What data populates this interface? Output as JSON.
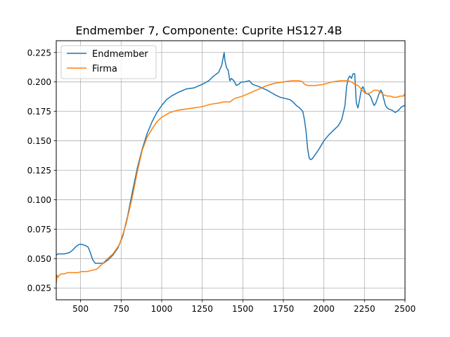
{
  "chart_data": {
    "type": "line",
    "title": "Endmember 7, Componente: Cuprite HS127.4B",
    "xlabel": "",
    "ylabel": "",
    "xlim": [
      350,
      2500
    ],
    "ylim": [
      0.015,
      0.235
    ],
    "xticks": [
      500,
      750,
      1000,
      1250,
      1500,
      1750,
      2000,
      2250,
      2500
    ],
    "yticks": [
      0.025,
      0.05,
      0.075,
      0.1,
      0.125,
      0.15,
      0.175,
      0.2,
      0.225
    ],
    "xtick_labels": [
      "500",
      "750",
      "1000",
      "1250",
      "1500",
      "1750",
      "2000",
      "2250",
      "2500"
    ],
    "ytick_labels": [
      "0.025",
      "0.050",
      "0.075",
      "0.100",
      "0.125",
      "0.150",
      "0.175",
      "0.200",
      "0.225"
    ],
    "grid": true,
    "legend_position": "top-left",
    "series": [
      {
        "name": "Endmember",
        "color": "#1f77b4",
        "x": [
          350,
          360,
          400,
          430,
          450,
          470,
          490,
          510,
          530,
          545,
          555,
          565,
          575,
          590,
          610,
          640,
          670,
          700,
          730,
          760,
          790,
          820,
          850,
          880,
          910,
          940,
          970,
          1000,
          1030,
          1060,
          1100,
          1150,
          1200,
          1250,
          1290,
          1320,
          1350,
          1370,
          1385,
          1390,
          1400,
          1410,
          1420,
          1425,
          1430,
          1445,
          1460,
          1475,
          1490,
          1510,
          1540,
          1560,
          1600,
          1650,
          1700,
          1730,
          1760,
          1790,
          1810,
          1830,
          1850,
          1870,
          1880,
          1890,
          1900,
          1910,
          1920,
          1930,
          1950,
          1970,
          2000,
          2030,
          2060,
          2090,
          2110,
          2130,
          2140,
          2150,
          2160,
          2170,
          2180,
          2190,
          2200,
          2210,
          2220,
          2230,
          2240,
          2250,
          2260,
          2270,
          2280,
          2290,
          2300,
          2310,
          2320,
          2330,
          2340,
          2350,
          2360,
          2370,
          2380,
          2390,
          2400,
          2420,
          2440,
          2460,
          2480,
          2500
        ],
        "y": [
          0.053,
          0.054,
          0.054,
          0.055,
          0.057,
          0.06,
          0.062,
          0.062,
          0.061,
          0.06,
          0.057,
          0.053,
          0.049,
          0.046,
          0.046,
          0.046,
          0.049,
          0.053,
          0.059,
          0.069,
          0.086,
          0.107,
          0.127,
          0.143,
          0.156,
          0.166,
          0.174,
          0.18,
          0.185,
          0.188,
          0.191,
          0.194,
          0.195,
          0.198,
          0.201,
          0.205,
          0.208,
          0.214,
          0.225,
          0.218,
          0.212,
          0.21,
          0.201,
          0.202,
          0.203,
          0.201,
          0.197,
          0.198,
          0.2,
          0.2,
          0.201,
          0.198,
          0.196,
          0.193,
          0.189,
          0.187,
          0.186,
          0.185,
          0.183,
          0.18,
          0.178,
          0.175,
          0.168,
          0.158,
          0.143,
          0.135,
          0.134,
          0.135,
          0.139,
          0.143,
          0.15,
          0.155,
          0.159,
          0.163,
          0.168,
          0.18,
          0.196,
          0.203,
          0.205,
          0.203,
          0.207,
          0.207,
          0.182,
          0.178,
          0.185,
          0.193,
          0.196,
          0.193,
          0.19,
          0.19,
          0.189,
          0.187,
          0.183,
          0.18,
          0.182,
          0.186,
          0.19,
          0.193,
          0.191,
          0.185,
          0.18,
          0.178,
          0.177,
          0.176,
          0.174,
          0.176,
          0.179,
          0.18
        ]
      },
      {
        "name": "Firma",
        "color": "#ff7f0e",
        "x": [
          350,
          355,
          360,
          370,
          380,
          400,
          420,
          450,
          480,
          510,
          540,
          570,
          600,
          630,
          660,
          700,
          740,
          780,
          820,
          850,
          880,
          910,
          940,
          970,
          1000,
          1050,
          1100,
          1150,
          1200,
          1250,
          1300,
          1350,
          1380,
          1400,
          1420,
          1450,
          1500,
          1550,
          1600,
          1650,
          1700,
          1750,
          1800,
          1850,
          1870,
          1880,
          1900,
          1920,
          1950,
          2000,
          2050,
          2100,
          2150,
          2170,
          2190,
          2210,
          2230,
          2250,
          2270,
          2290,
          2310,
          2330,
          2350,
          2370,
          2390,
          2410,
          2430,
          2450,
          2470,
          2490,
          2500
        ],
        "y": [
          0.029,
          0.036,
          0.034,
          0.036,
          0.037,
          0.037,
          0.038,
          0.038,
          0.038,
          0.039,
          0.039,
          0.04,
          0.041,
          0.045,
          0.049,
          0.054,
          0.062,
          0.079,
          0.103,
          0.124,
          0.142,
          0.153,
          0.16,
          0.166,
          0.17,
          0.174,
          0.176,
          0.177,
          0.178,
          0.179,
          0.181,
          0.182,
          0.183,
          0.183,
          0.183,
          0.186,
          0.188,
          0.191,
          0.194,
          0.197,
          0.199,
          0.2,
          0.201,
          0.201,
          0.2,
          0.198,
          0.197,
          0.197,
          0.197,
          0.198,
          0.2,
          0.201,
          0.201,
          0.2,
          0.198,
          0.197,
          0.194,
          0.191,
          0.19,
          0.191,
          0.193,
          0.193,
          0.191,
          0.189,
          0.188,
          0.188,
          0.187,
          0.187,
          0.188,
          0.188,
          0.19
        ]
      }
    ]
  }
}
